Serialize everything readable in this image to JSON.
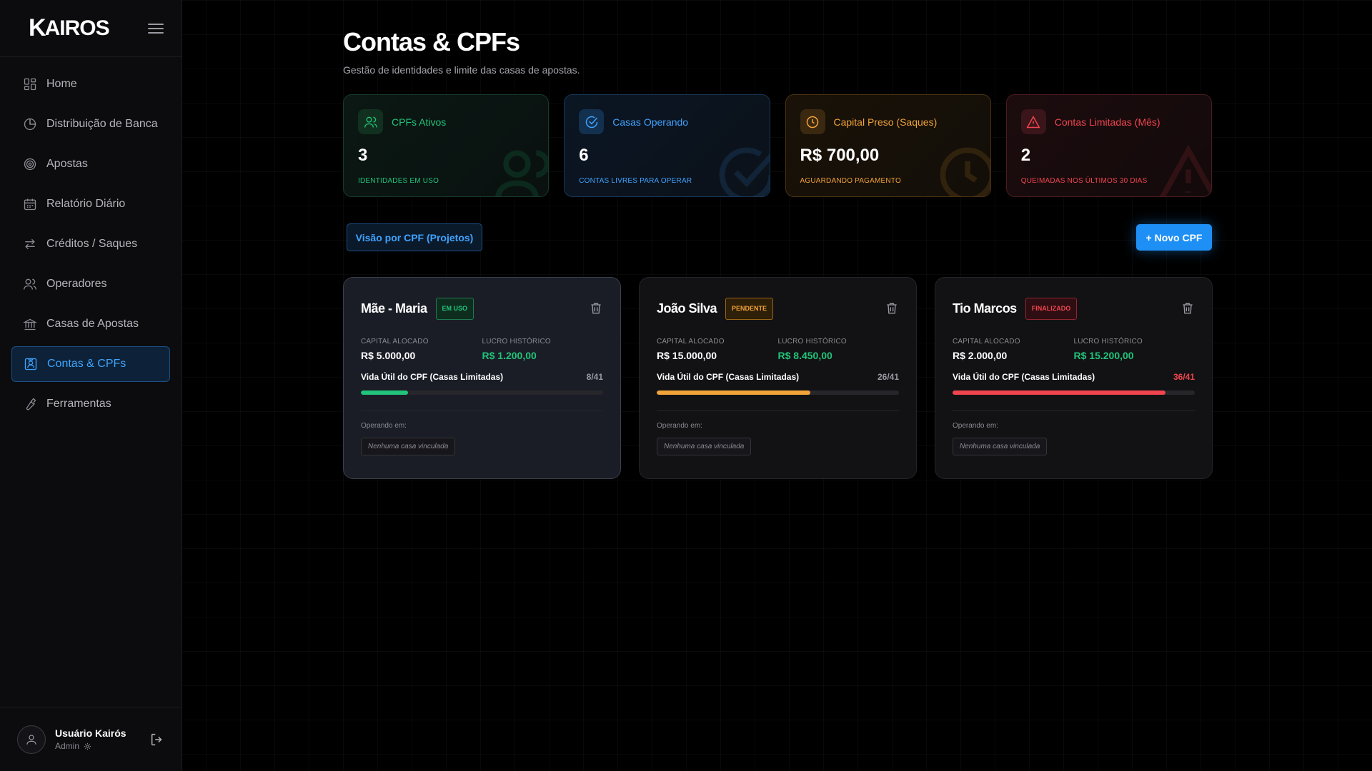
{
  "brand": {
    "logo_k": "K",
    "logo_rest": "AIROS"
  },
  "nav": [
    {
      "label": "Home",
      "icon": "grid-icon"
    },
    {
      "label": "Distribuição de Banca",
      "icon": "pie-chart-icon"
    },
    {
      "label": "Apostas",
      "icon": "target-icon"
    },
    {
      "label": "Relatório Diário",
      "icon": "calendar-icon"
    },
    {
      "label": "Créditos / Saques",
      "icon": "arrows-swap-icon"
    },
    {
      "label": "Operadores",
      "icon": "users-icon"
    },
    {
      "label": "Casas de Apostas",
      "icon": "bank-icon"
    },
    {
      "label": "Contas & CPFs",
      "icon": "id-card-icon",
      "active": true
    },
    {
      "label": "Ferramentas",
      "icon": "wrench-icon"
    }
  ],
  "user": {
    "name": "Usuário Kairós",
    "role": "Admin"
  },
  "page": {
    "title": "Contas & CPFs",
    "subtitle": "Gestão de identidades e limite das casas de apostas."
  },
  "stats": [
    {
      "label": "CPFs Ativos",
      "value": "3",
      "caption": "Identidades em uso",
      "color": "#21c47a",
      "icon": "users-icon"
    },
    {
      "label": "Casas Operando",
      "value": "6",
      "caption": "Contas livres para operar",
      "color": "#3fa3ff",
      "icon": "check-circle-icon"
    },
    {
      "label": "Capital Preso (Saques)",
      "value": "R$ 700,00",
      "caption": "Aguardando pagamento",
      "color": "#f2a33a",
      "icon": "clock-icon"
    },
    {
      "label": "Contas Limitadas (Mês)",
      "value": "2",
      "caption": "Queimadas nos últimos 30 dias",
      "color": "#f0454f",
      "icon": "warning-icon"
    }
  ],
  "actions": {
    "view_label": "Visão por CPF (Projetos)",
    "new_label": "+ Novo CPF"
  },
  "cards": [
    {
      "name": "Mãe - Maria",
      "badge": "Em uso",
      "badge_color": "#21c47a",
      "capital_label": "Capital Alocado",
      "capital": "R$ 5.000,00",
      "lucro_label": "Lucro Histórico",
      "lucro": "R$ 1.200,00",
      "life_label": "Vida Útil do CPF (Casas Limitadas)",
      "life_text": "8/41",
      "life_used": 8,
      "life_total": 41,
      "bar_color": "#21c47a",
      "op_label": "Operando em:",
      "op_value": "Nenhuma casa vinculada",
      "selected": true
    },
    {
      "name": "João Silva",
      "badge": "Pendente",
      "badge_color": "#f2a33a",
      "capital_label": "Capital Alocado",
      "capital": "R$ 15.000,00",
      "lucro_label": "Lucro Histórico",
      "lucro": "R$ 8.450,00",
      "life_label": "Vida Útil do CPF (Casas Limitadas)",
      "life_text": "26/41",
      "life_used": 26,
      "life_total": 41,
      "bar_color": "#f2a33a",
      "op_label": "Operando em:",
      "op_value": "Nenhuma casa vinculada",
      "selected": false
    },
    {
      "name": "Tio Marcos",
      "badge": "Finalizado",
      "badge_color": "#f0454f",
      "capital_label": "Capital Alocado",
      "capital": "R$ 2.000,00",
      "lucro_label": "Lucro Histórico",
      "lucro": "R$ 15.200,00",
      "life_label": "Vida Útil do CPF (Casas Limitadas)",
      "life_text": "36/41",
      "life_used": 36,
      "life_total": 41,
      "bar_color": "#f0454f",
      "op_label": "Operando em:",
      "op_value": "Nenhuma casa vinculada",
      "selected": false
    }
  ]
}
